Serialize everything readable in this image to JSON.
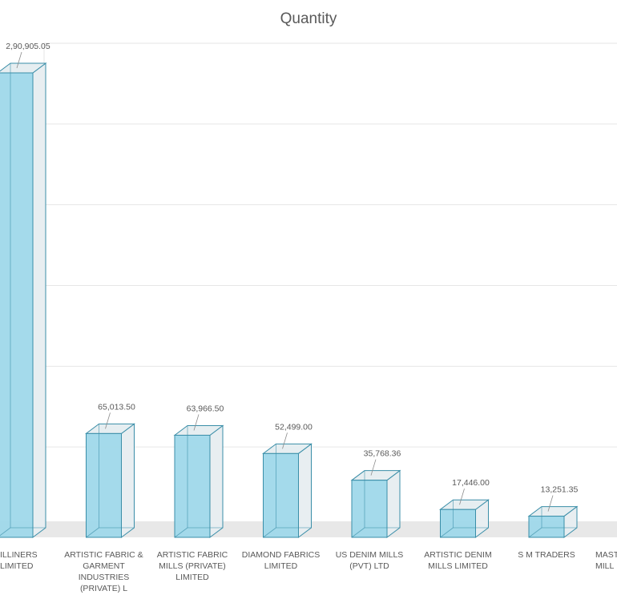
{
  "chart_data": {
    "type": "bar",
    "title": "Quantity",
    "categories": [
      "ILLINERS\nLIMITED",
      "ARTISTIC FABRIC &\nGARMENT\nINDUSTRIES\n(PRIVATE) L",
      "ARTISTIC FABRIC\nMILLS (PRIVATE)\nLIMITED",
      "DIAMOND FABRICS\nLIMITED",
      "US DENIM MILLS\n(PVT) LTD",
      "ARTISTIC DENIM\nMILLS LIMITED",
      "S M TRADERS",
      "MAST\nMILL"
    ],
    "values": [
      290905.05,
      65013.5,
      63966.5,
      52499.0,
      35768.36,
      17446.0,
      13251.35,
      null
    ],
    "data_labels": [
      "2,90,905.05",
      "65,013.50",
      "63,966.50",
      "52,499.00",
      "35,768.36",
      "17,446.00",
      "13,251.35",
      ""
    ],
    "ylim": [
      0,
      300000
    ],
    "grid": true,
    "legend": "none",
    "style": "3d-column",
    "colors": {
      "bar_front": "#9fd8ea",
      "bar_side": "#e8eef1",
      "bar_top": "#e6eef1",
      "bar_stroke": "#3a8ea8",
      "grid": "#e6e6e6",
      "floor": "#e8e8e8",
      "text": "#595959"
    }
  }
}
